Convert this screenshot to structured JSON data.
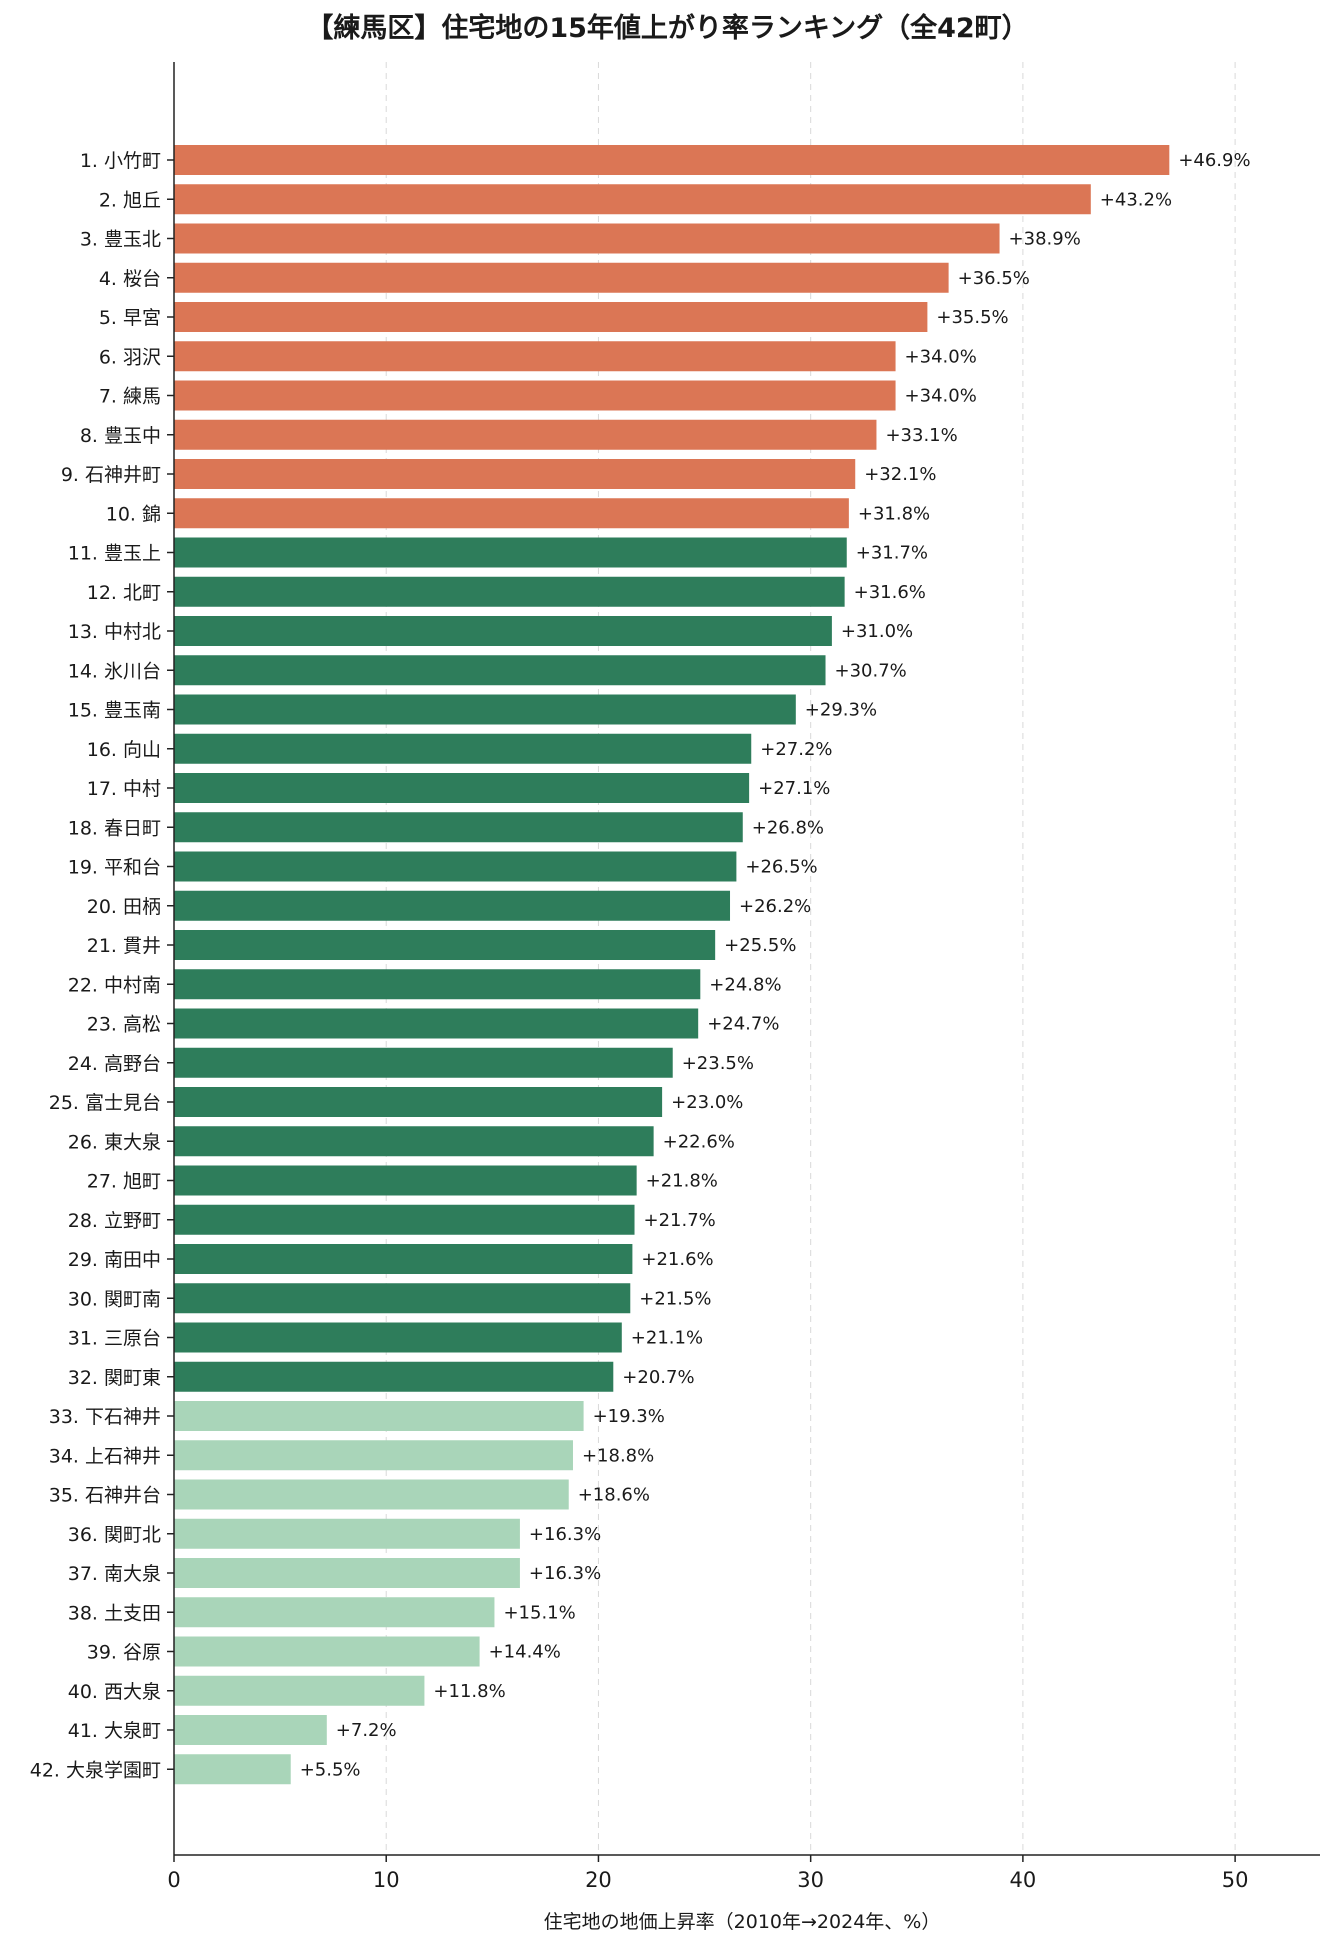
{
  "chart_data": {
    "type": "bar",
    "orientation": "horizontal",
    "title": "【練馬区】住宅地の15年値上がり率ランキング（全42町）",
    "xlabel": "住宅地の地価上昇率（2010年→2024年、%）",
    "ylabel": "",
    "xlim": [
      0,
      54
    ],
    "xticks": [
      0,
      10,
      20,
      30,
      40,
      50
    ],
    "grid": "vertical-dashed",
    "value_label_prefix": "+",
    "value_label_suffix": "%",
    "tiers": [
      {
        "rank_from": 1,
        "rank_to": 10,
        "color": "#db7655"
      },
      {
        "rank_from": 11,
        "rank_to": 32,
        "color": "#2e7d5b"
      },
      {
        "rank_from": 33,
        "rank_to": 42,
        "color": "#a9d5b9"
      }
    ],
    "categories": [
      "1. 小竹町",
      "2. 旭丘",
      "3. 豊玉北",
      "4. 桜台",
      "5. 早宮",
      "6. 羽沢",
      "7. 練馬",
      "8. 豊玉中",
      "9. 石神井町",
      "10. 錦",
      "11. 豊玉上",
      "12. 北町",
      "13. 中村北",
      "14. 氷川台",
      "15. 豊玉南",
      "16. 向山",
      "17. 中村",
      "18. 春日町",
      "19. 平和台",
      "20. 田柄",
      "21. 貫井",
      "22. 中村南",
      "23. 高松",
      "24. 高野台",
      "25. 富士見台",
      "26. 東大泉",
      "27. 旭町",
      "28. 立野町",
      "29. 南田中",
      "30. 関町南",
      "31. 三原台",
      "32. 関町東",
      "33. 下石神井",
      "34. 上石神井",
      "35. 石神井台",
      "36. 関町北",
      "37. 南大泉",
      "38. 土支田",
      "39. 谷原",
      "40. 西大泉",
      "41. 大泉町",
      "42. 大泉学園町"
    ],
    "values": [
      46.9,
      43.2,
      38.9,
      36.5,
      35.5,
      34.0,
      34.0,
      33.1,
      32.1,
      31.8,
      31.7,
      31.6,
      31.0,
      30.7,
      29.3,
      27.2,
      27.1,
      26.8,
      26.5,
      26.2,
      25.5,
      24.8,
      24.7,
      23.5,
      23.0,
      22.6,
      21.8,
      21.7,
      21.6,
      21.5,
      21.1,
      20.7,
      19.3,
      18.8,
      18.6,
      16.3,
      16.3,
      15.1,
      14.4,
      11.8,
      7.2,
      5.5
    ]
  }
}
